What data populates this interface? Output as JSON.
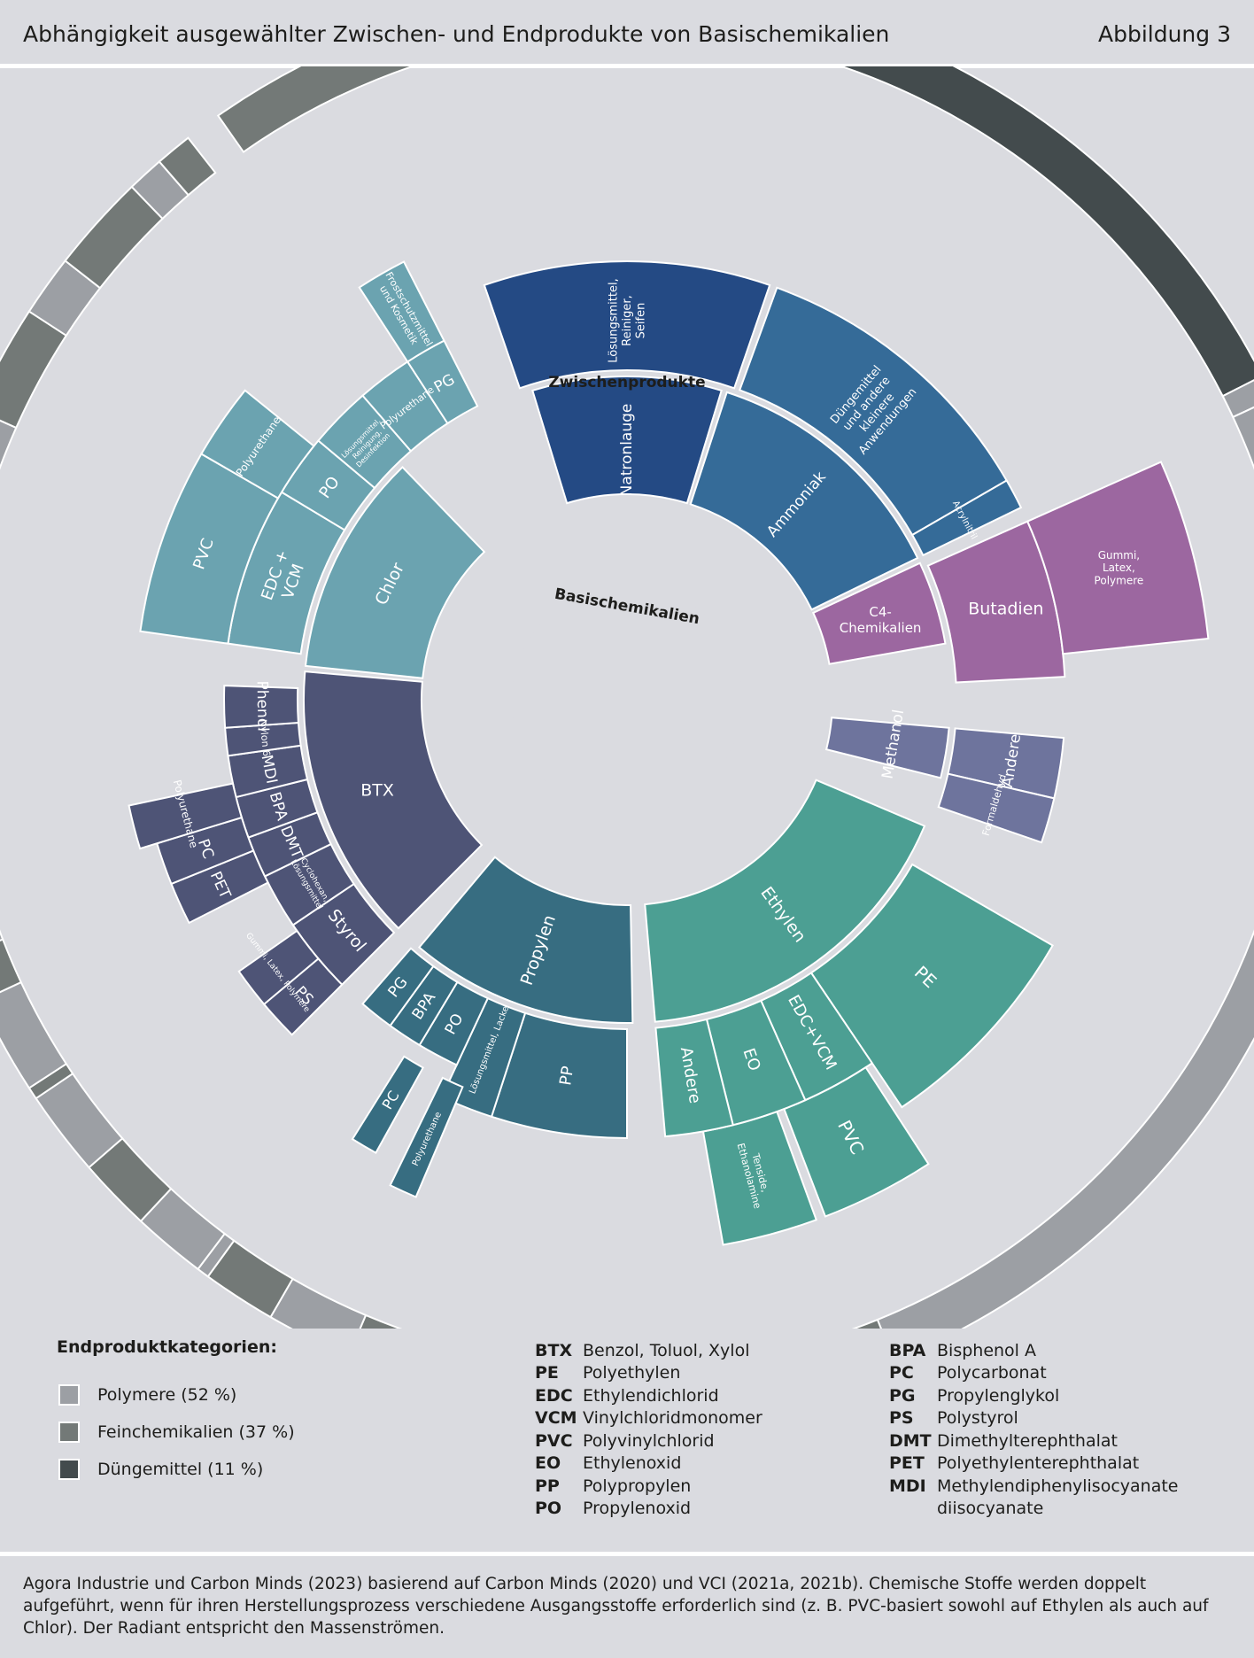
{
  "header": {
    "title": "Abhängigkeit ausgewählter Zwischen- und Endprodukte von Basischemikalien",
    "figure": "Abbildung 3"
  },
  "diagram": {
    "ring_labels": {
      "outer": "Endprodukte",
      "middle": "Zwischenprodukte",
      "inner": "Basischemikalien"
    },
    "colors": {
      "Polymere": "#9c9fa4",
      "Feinchemikalien": "#737977",
      "Duengemittel": "#434b4d",
      "Chlor": "#6ba3b0",
      "Natronlauge": "#244a84",
      "Ammoniak": "#356b98",
      "C4": "#9c67a0",
      "Methanol": "#6e749d",
      "Ethylen": "#4c9f93",
      "Propylen": "#376d81",
      "BTX": "#4e5476"
    },
    "basic": [
      {
        "label": "Natronlauge",
        "color": "#244a84",
        "a0": -17,
        "a1": 17
      },
      {
        "label": "Ammoniak",
        "color": "#356b98",
        "a0": 18,
        "a1": 64
      },
      {
        "label": "C4-Chemikalien",
        "color": "#9c67a0",
        "a0": 65,
        "a1": 94
      },
      {
        "label": "Methanol",
        "color": "#6e749d",
        "a0": 95,
        "a1": 112
      },
      {
        "label": "Ethylen",
        "color": "#4c9f93",
        "a0": 113,
        "a1": 178
      },
      {
        "label": "Propylen",
        "color": "#376d81",
        "a0": 179,
        "a1": 224
      },
      {
        "label": "BTX",
        "color": "#4e5476",
        "a0": 225,
        "a1": 275
      },
      {
        "label": "Chlor",
        "color": "#6ba3b0",
        "a0": 276,
        "a1": 342
      }
    ],
    "intermediate": [
      {
        "label": "Natronlauge",
        "color": "#244a84",
        "a0": -17,
        "a1": 17
      },
      {
        "label": "Ammoniak",
        "color": "#356b98",
        "a0": 18,
        "a1": 64
      },
      {
        "label": "C4",
        "color": "#9c67a0",
        "a0": 65,
        "a1": 94
      },
      {
        "label": "Methanol",
        "color": "#6e749d",
        "a0": 95,
        "a1": 112
      },
      {
        "label": "Ethylen",
        "color": "#4c9f93",
        "a0": 113,
        "a1": 178
      },
      {
        "label": "Propylen",
        "color": "#376d81",
        "a0": 179,
        "a1": 224
      },
      {
        "label": "BTX",
        "color": "#4e5476",
        "a0": 225,
        "a1": 275
      },
      {
        "label": "Chlor",
        "color": "#6ba3b0",
        "a0": 276,
        "a1": 342
      }
    ],
    "sectors": [
      {
        "color": "#244a84",
        "a0": -17,
        "a1": 17,
        "r0": 232,
        "r1": 365,
        "label": "Natronlauge",
        "lr": 282,
        "fs": 17,
        "rot": "radial"
      },
      {
        "color": "#244a84",
        "a0": -19,
        "a1": 19,
        "r0": 372,
        "r1": 495,
        "label": "Lösungsmittel,\nReiniger,\nSeifen",
        "lr": 428,
        "fs": 13,
        "rot": "radial"
      },
      {
        "color": "#356b98",
        "a0": 18,
        "a1": 64,
        "r0": 232,
        "r1": 365,
        "label": "Ammoniak",
        "lr": 292,
        "fs": 17,
        "rot": "radial"
      },
      {
        "color": "#356b98",
        "a0": 20,
        "a1": 60,
        "r0": 372,
        "r1": 495,
        "label": "Düngemittel\nund andere\nkleinere\nAnwendungen",
        "lr": 430,
        "fs": 13,
        "rot": "radial"
      },
      {
        "color": "#356b98",
        "a0": 60,
        "a1": 64,
        "r0": 372,
        "r1": 495,
        "label": "Acrylnitril",
        "lr": 432,
        "fs": 10,
        "rot": "tangential"
      },
      {
        "color": "#9c67a0",
        "a0": 65,
        "a1": 80,
        "r0": 232,
        "r1": 365,
        "label": "C4-\nChemikalien",
        "lr": 300,
        "fs": 15,
        "rot": "none"
      },
      {
        "color": "#9c67a0",
        "a0": 66,
        "a1": 87,
        "r0": 372,
        "r1": 495,
        "label": "Butadien",
        "lr": 440,
        "fs": 19,
        "rot": "none"
      },
      {
        "color": "#9c67a0",
        "a0": 66,
        "a1": 84,
        "r0": 495,
        "r1": 660,
        "label": "Gummi,\nLatex,\nPolymere",
        "lr": 575,
        "fs": 12,
        "rot": "none"
      },
      {
        "color": "#6e749d",
        "a0": 95,
        "a1": 104,
        "r0": 232,
        "r1": 365,
        "label": "Methanol",
        "lr": 305,
        "fs": 17,
        "rot": "tangential"
      },
      {
        "color": "#6e749d",
        "a0": 95,
        "a1": 103,
        "r0": 372,
        "r1": 495,
        "label": "Andere",
        "lr": 440,
        "fs": 17,
        "rot": "tangential"
      },
      {
        "color": "#6e749d",
        "a0": 103,
        "a1": 109,
        "r0": 372,
        "r1": 495,
        "label": "Formaldehyd",
        "lr": 432,
        "fs": 11,
        "rot": "tangential"
      },
      {
        "color": "#4c9f93",
        "a0": 113,
        "a1": 175,
        "r0": 232,
        "r1": 365,
        "label": "Ethylen",
        "lr": 300,
        "fs": 19,
        "rot": "radial"
      },
      {
        "color": "#4c9f93",
        "a0": 120,
        "a1": 146,
        "r0": 372,
        "r1": 555,
        "label": "PE",
        "lr": 460,
        "fs": 20,
        "rot": "radial"
      },
      {
        "color": "#4c9f93",
        "a0": 146,
        "a1": 156,
        "r0": 372,
        "r1": 495,
        "label": "EDC+VCM",
        "lr": 430,
        "fs": 18,
        "rot": "radial"
      },
      {
        "color": "#4c9f93",
        "a0": 147,
        "a1": 159,
        "r0": 495,
        "r1": 625,
        "label": "PVC",
        "lr": 555,
        "fs": 20,
        "rot": "radial"
      },
      {
        "color": "#4c9f93",
        "a0": 156,
        "a1": 166,
        "r0": 372,
        "r1": 495,
        "label": "EO",
        "lr": 430,
        "fs": 18,
        "rot": "radial"
      },
      {
        "color": "#4c9f93",
        "a0": 160,
        "a1": 170,
        "r0": 495,
        "r1": 625,
        "label": "Tenside,\nEthanolamine",
        "lr": 555,
        "fs": 11,
        "rot": "radial"
      },
      {
        "color": "#4c9f93",
        "a0": 166,
        "a1": 175,
        "r0": 372,
        "r1": 495,
        "label": "Andere",
        "lr": 430,
        "fs": 18,
        "rot": "radial"
      },
      {
        "color": "#376d81",
        "a0": 179,
        "a1": 220,
        "r0": 232,
        "r1": 365,
        "label": "Propylen",
        "lr": 300,
        "fs": 19,
        "rot": "radial"
      },
      {
        "color": "#376d81",
        "a0": 180,
        "a1": 198,
        "r0": 372,
        "r1": 495,
        "label": "PP",
        "lr": 430,
        "fs": 18,
        "rot": "radial"
      },
      {
        "color": "#376d81",
        "a0": 198,
        "a1": 205,
        "r0": 372,
        "r1": 495,
        "label": "Lösungsmittel, Lacke",
        "lr": 425,
        "fs": 10,
        "rot": "radial"
      },
      {
        "color": "#376d81",
        "a0": 205,
        "a1": 211,
        "r0": 372,
        "r1": 455,
        "label": "PO",
        "lr": 415,
        "fs": 17,
        "rot": "radial"
      },
      {
        "color": "#376d81",
        "a0": 211,
        "a1": 216,
        "r0": 372,
        "r1": 455,
        "label": "BPA",
        "lr": 415,
        "fs": 17,
        "rot": "radial"
      },
      {
        "color": "#376d81",
        "a0": 216,
        "a1": 221,
        "r0": 372,
        "r1": 455,
        "label": "PG",
        "lr": 415,
        "fs": 17,
        "rot": "radial"
      },
      {
        "color": "#376d81",
        "a0": 203,
        "a1": 206,
        "r0": 475,
        "r1": 610,
        "label": "Polyurethane",
        "lr": 545,
        "fs": 10,
        "rot": "radial"
      },
      {
        "color": "#376d81",
        "a0": 209,
        "a1": 212,
        "r0": 475,
        "r1": 585,
        "label": "PC",
        "lr": 525,
        "fs": 16,
        "rot": "radial"
      },
      {
        "color": "#4e5476",
        "a0": 225,
        "a1": 275,
        "r0": 232,
        "r1": 365,
        "label": "BTX",
        "lr": 300,
        "fs": 19,
        "rot": "none"
      },
      {
        "color": "#4e5476",
        "a0": 225,
        "a1": 236,
        "r0": 372,
        "r1": 455,
        "label": "Styrol",
        "lr": 410,
        "fs": 19,
        "rot": "tangential"
      },
      {
        "color": "#4e5476",
        "a0": 236,
        "a1": 244,
        "r0": 372,
        "r1": 455,
        "label": "Cyclohexan,\nLösungsmittel",
        "lr": 412,
        "fs": 9,
        "rot": "tangential"
      },
      {
        "color": "#4e5476",
        "a0": 244,
        "a1": 250,
        "r0": 372,
        "r1": 455,
        "label": "DMT",
        "lr": 412,
        "fs": 17,
        "rot": "tangential"
      },
      {
        "color": "#4e5476",
        "a0": 250,
        "a1": 256,
        "r0": 372,
        "r1": 455,
        "label": "BPA",
        "lr": 412,
        "fs": 17,
        "rot": "tangential"
      },
      {
        "color": "#4e5476",
        "a0": 256,
        "a1": 262,
        "r0": 372,
        "r1": 455,
        "label": "MDI",
        "lr": 412,
        "fs": 17,
        "rot": "tangential"
      },
      {
        "color": "#4e5476",
        "a0": 262,
        "a1": 266,
        "r0": 372,
        "r1": 455,
        "label": "Nylon 6",
        "lr": 412,
        "fs": 11,
        "rot": "tangential"
      },
      {
        "color": "#4e5476",
        "a0": 266,
        "a1": 272,
        "r0": 372,
        "r1": 455,
        "label": "Phenol",
        "lr": 412,
        "fs": 17,
        "rot": "tangential"
      },
      {
        "color": "#4e5476",
        "a0": 229,
        "a1": 235,
        "r0": 455,
        "r1": 535,
        "label": "Gummi, Latex, Polymere",
        "lr": 500,
        "fs": 9,
        "rot": "tangential"
      },
      {
        "color": "#4e5476",
        "a0": 225,
        "a1": 230,
        "r0": 455,
        "r1": 535,
        "label": "PS",
        "lr": 495,
        "fs": 17,
        "rot": "tangential"
      },
      {
        "color": "#4e5476",
        "a0": 243,
        "a1": 248,
        "r0": 455,
        "r1": 555,
        "label": "PET",
        "lr": 505,
        "fs": 17,
        "rot": "tangential"
      },
      {
        "color": "#4e5476",
        "a0": 248,
        "a1": 253,
        "r0": 455,
        "r1": 555,
        "label": "PC",
        "lr": 505,
        "fs": 17,
        "rot": "tangential"
      },
      {
        "color": "#4e5476",
        "a0": 253,
        "a1": 258,
        "r0": 455,
        "r1": 575,
        "label": "Polyurethane",
        "lr": 515,
        "fs": 12,
        "rot": "tangential"
      },
      {
        "color": "#6ba3b0",
        "a0": 276,
        "a1": 316,
        "r0": 232,
        "r1": 365,
        "label": "Chlor",
        "lr": 298,
        "fs": 19,
        "rot": "tangential"
      },
      {
        "color": "#6ba3b0",
        "a0": 278,
        "a1": 301,
        "r0": 372,
        "r1": 455,
        "label": "EDC +\nVCM",
        "lr": 410,
        "fs": 18,
        "rot": "tangential"
      },
      {
        "color": "#6ba3b0",
        "a0": 278,
        "a1": 300,
        "r0": 455,
        "r1": 555,
        "label": "PVC",
        "lr": 505,
        "fs": 18,
        "rot": "tangential"
      },
      {
        "color": "#6ba3b0",
        "a0": 301,
        "a1": 310,
        "r0": 372,
        "r1": 455,
        "label": "PO",
        "lr": 412,
        "fs": 18,
        "rot": "tangential"
      },
      {
        "color": "#6ba3b0",
        "a0": 300,
        "a1": 309,
        "r0": 455,
        "r1": 555,
        "label": "Polyurethane",
        "lr": 505,
        "fs": 12,
        "rot": "tangential"
      },
      {
        "color": "#6ba3b0",
        "a0": 310,
        "a1": 319,
        "r0": 372,
        "r1": 455,
        "label": "Lösungsmittel,\nReinigung,\nDesinfektion",
        "lr": 412,
        "fs": 8,
        "rot": "tangential"
      },
      {
        "color": "#6ba3b0",
        "a0": 319,
        "a1": 327,
        "r0": 372,
        "r1": 455,
        "label": "Polyurethane",
        "lr": 412,
        "fs": 11,
        "rot": "tangential"
      },
      {
        "color": "#6ba3b0",
        "a0": 327,
        "a1": 333,
        "r0": 372,
        "r1": 455,
        "label": "PG",
        "lr": 412,
        "fs": 17,
        "rot": "tangential"
      },
      {
        "color": "#6ba3b0",
        "a0": 327,
        "a1": 333,
        "r0": 455,
        "r1": 555,
        "label": "Frostschutzmittel\nund Kosmetik",
        "lr": 505,
        "fs": 11,
        "rot": "radial"
      }
    ],
    "outer_ring": [
      {
        "c": "F",
        "a0": -35,
        "a1": 18
      },
      {
        "c": "D",
        "a0": 18,
        "a1": 63
      },
      {
        "c": "P",
        "a0": 63,
        "a1": 65
      },
      {
        "c": "P",
        "a0": 65,
        "a1": 88
      },
      {
        "c": "F",
        "a0": 88,
        "a1": 88.8
      },
      {
        "c": "F",
        "a0": 89.5,
        "a1": 105
      },
      {
        "c": "P",
        "a0": 105,
        "a1": 107
      },
      {
        "c": "F",
        "a0": 107,
        "a1": 107.8
      },
      {
        "c": "F",
        "a0": 107.8,
        "a1": 108.6
      },
      {
        "c": "P",
        "a0": 109.5,
        "a1": 158
      },
      {
        "c": "F",
        "a0": 158,
        "a1": 167
      },
      {
        "c": "P",
        "a0": 167,
        "a1": 175
      },
      {
        "c": "D",
        "a0": 175,
        "a1": 176
      },
      {
        "c": "P",
        "a0": 176,
        "a1": 198
      },
      {
        "c": "F",
        "a0": 198,
        "a1": 203
      },
      {
        "c": "P",
        "a0": 203,
        "a1": 210
      },
      {
        "c": "F",
        "a0": 210,
        "a1": 216
      },
      {
        "c": "P",
        "a0": 216,
        "a1": 217
      },
      {
        "c": "P",
        "a0": 217,
        "a1": 223
      },
      {
        "c": "F",
        "a0": 223,
        "a1": 229
      },
      {
        "c": "P",
        "a0": 229,
        "a1": 236
      },
      {
        "c": "F",
        "a0": 236,
        "a1": 237
      },
      {
        "c": "P",
        "a0": 237,
        "a1": 245
      },
      {
        "c": "F",
        "a0": 245,
        "a1": 249
      },
      {
        "c": "P",
        "a0": 249,
        "a1": 255
      },
      {
        "c": "P",
        "a0": 255.5,
        "a1": 294
      },
      {
        "c": "F",
        "a0": 294,
        "a1": 303
      },
      {
        "c": "P",
        "a0": 303,
        "a1": 308
      },
      {
        "c": "F",
        "a0": 308,
        "a1": 316
      },
      {
        "c": "P",
        "a0": 316,
        "a1": 319
      },
      {
        "c": "F",
        "a0": 319,
        "a1": 322
      }
    ]
  },
  "legend": {
    "title": "Endproduktkategorien:",
    "items": [
      {
        "label": "Polymere (52 %)",
        "color": "#9c9fa4"
      },
      {
        "label": "Feinchemikalien (37 %)",
        "color": "#737977"
      },
      {
        "label": "Düngemittel (11 %)",
        "color": "#434b4d"
      }
    ]
  },
  "abbreviations_col1": [
    {
      "k": "BTX",
      "v": "Benzol, Toluol, Xylol"
    },
    {
      "k": "PE",
      "v": "Polyethylen"
    },
    {
      "k": "EDC",
      "v": "Ethylendichlorid"
    },
    {
      "k": "VCM",
      "v": "Vinylchloridmonomer"
    },
    {
      "k": "PVC",
      "v": "Polyvinylchlorid"
    },
    {
      "k": "EO",
      "v": "Ethylenoxid"
    },
    {
      "k": "PP",
      "v": "Polypropylen"
    },
    {
      "k": "PO",
      "v": "Propylenoxid"
    }
  ],
  "abbreviations_col2": [
    {
      "k": "BPA",
      "v": "Bisphenol A"
    },
    {
      "k": "PC",
      "v": "Polycarbonat"
    },
    {
      "k": "PG",
      "v": "Propylenglykol"
    },
    {
      "k": "PS",
      "v": "Polystyrol"
    },
    {
      "k": "DMT",
      "v": "Dimethylterephthalat"
    },
    {
      "k": "PET",
      "v": "Polyethylenterephthalat"
    },
    {
      "k": "MDI",
      "v": "Methylendiphenylisocyanate"
    },
    {
      "k": "",
      "v": "diisocyanate"
    }
  ],
  "footer": "Agora Industrie und Carbon Minds (2023) basierend auf Carbon Minds (2020) und VCI (2021a, 2021b). Chemische Stoffe werden doppelt aufgeführt, wenn für ihren Herstellungsprozess verschiedene Ausgangsstoffe erforderlich sind (z. B. PVC-basiert sowohl auf Ethylen als auch auf Chlor). Der Radiant entspricht den Massenströmen."
}
